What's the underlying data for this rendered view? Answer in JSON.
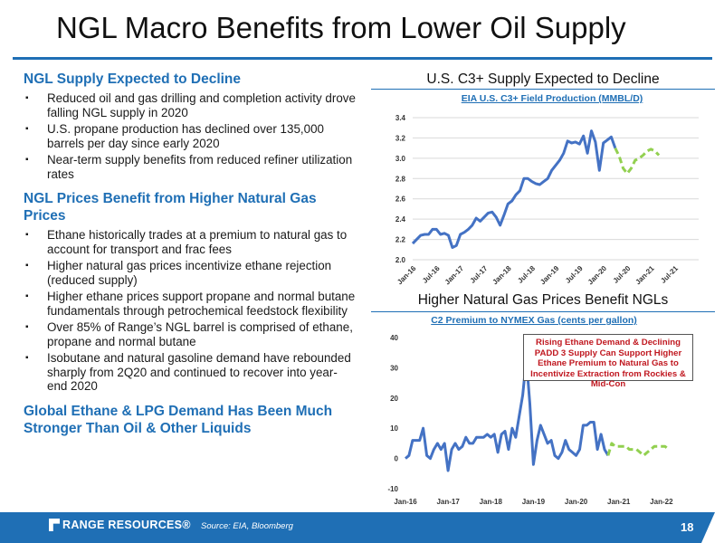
{
  "slide": {
    "title": "NGL Macro Benefits from Lower Oil Supply",
    "page_number": "18"
  },
  "sections": [
    {
      "heading": "NGL Supply Expected to Decline",
      "bullets": [
        "Reduced oil and gas drilling and completion activity drove falling NGL supply in 2020",
        "U.S. propane production has declined over 135,000 barrels per day since early 2020",
        "Near-term supply benefits from reduced refiner utilization rates"
      ]
    },
    {
      "heading": "NGL Prices Benefit from Higher Natural Gas Prices",
      "bullets": [
        "Ethane historically trades at a premium to natural gas to account for transport and frac fees",
        "Higher natural gas prices incentivize ethane rejection (reduced supply)",
        "Higher ethane prices support propane and normal butane fundamentals through petrochemical feedstock flexibility",
        "Over 85% of Range’s NGL barrel is comprised of ethane, propane and normal butane",
        "Isobutane and natural gasoline demand have rebounded sharply from 2Q20 and continued to recover into year-end 2020"
      ]
    },
    {
      "heading": "Global Ethane & LPG Demand Has Been Much Stronger Than Oil & Other Liquids",
      "bullets": []
    }
  ],
  "bullet_glyph": "▪",
  "chart1_header": "U.S. C3+ Supply Expected to Decline",
  "chart2_header": "Higher Natural Gas Prices Benefit NGLs",
  "callout": "Rising Ethane Demand & Declining PADD 3 Supply Can Support Higher Ethane Premium to Natural Gas to Incentivize Extraction from Rockies & Mid-Con",
  "footer": {
    "logo_text": "RANGE RESOURCES®",
    "source": "Source: EIA, Bloomberg"
  },
  "colors": {
    "brand_blue": "#1f6fb5",
    "series_actual": "#4472c4",
    "series_forecast": "#92d050",
    "callout_text": "#c0171f"
  },
  "chart_data": [
    {
      "type": "line",
      "title": "EIA U.S. C3+ Field Production (MMBL/D)",
      "ylim": [
        2.0,
        3.4
      ],
      "yticks": [
        "2.0",
        "2.2",
        "2.4",
        "2.6",
        "2.8",
        "3.0",
        "3.2",
        "3.4"
      ],
      "xlim": [
        0,
        72
      ],
      "xticks": [
        {
          "label": "Jan-16",
          "x": 0
        },
        {
          "label": "Jul-16",
          "x": 6
        },
        {
          "label": "Jan-17",
          "x": 12
        },
        {
          "label": "Jul-17",
          "x": 18
        },
        {
          "label": "Jan-18",
          "x": 24
        },
        {
          "label": "Jul-18",
          "x": 30
        },
        {
          "label": "Jan-19",
          "x": 36
        },
        {
          "label": "Jul-19",
          "x": 42
        },
        {
          "label": "Jan-20",
          "x": 48
        },
        {
          "label": "Jul-20",
          "x": 54
        },
        {
          "label": "Jan-21",
          "x": 60
        },
        {
          "label": "Jul-21",
          "x": 66
        }
      ],
      "grid": true,
      "series": [
        {
          "style": "solid",
          "points": [
            [
              0,
              2.16
            ],
            [
              1,
              2.2
            ],
            [
              2,
              2.24
            ],
            [
              3,
              2.25
            ],
            [
              4,
              2.25
            ],
            [
              5,
              2.3
            ],
            [
              6,
              2.3
            ],
            [
              7,
              2.25
            ],
            [
              8,
              2.26
            ],
            [
              9,
              2.24
            ],
            [
              10,
              2.12
            ],
            [
              11,
              2.14
            ],
            [
              12,
              2.25
            ],
            [
              13,
              2.27
            ],
            [
              14,
              2.3
            ],
            [
              15,
              2.34
            ],
            [
              16,
              2.41
            ],
            [
              17,
              2.38
            ],
            [
              18,
              2.42
            ],
            [
              19,
              2.46
            ],
            [
              20,
              2.47
            ],
            [
              21,
              2.42
            ],
            [
              22,
              2.34
            ],
            [
              23,
              2.44
            ],
            [
              24,
              2.55
            ],
            [
              25,
              2.58
            ],
            [
              26,
              2.64
            ],
            [
              27,
              2.68
            ],
            [
              28,
              2.8
            ],
            [
              29,
              2.8
            ],
            [
              30,
              2.77
            ],
            [
              31,
              2.75
            ],
            [
              32,
              2.74
            ],
            [
              33,
              2.77
            ],
            [
              34,
              2.8
            ],
            [
              35,
              2.88
            ],
            [
              36,
              2.93
            ],
            [
              37,
              2.98
            ],
            [
              38,
              3.05
            ],
            [
              39,
              3.17
            ],
            [
              40,
              3.15
            ],
            [
              41,
              3.16
            ],
            [
              42,
              3.14
            ],
            [
              43,
              3.22
            ],
            [
              44,
              3.05
            ],
            [
              45,
              3.27
            ],
            [
              46,
              3.16
            ],
            [
              47,
              2.88
            ],
            [
              48,
              3.15
            ],
            [
              49,
              3.18
            ],
            [
              50,
              3.21
            ],
            [
              51,
              3.1
            ]
          ]
        },
        {
          "style": "dashed",
          "points": [
            [
              51,
              3.1
            ],
            [
              52,
              3.02
            ],
            [
              53,
              2.9
            ],
            [
              54,
              2.85
            ],
            [
              55,
              2.9
            ],
            [
              56,
              2.98
            ],
            [
              57,
              3.0
            ],
            [
              58,
              3.03
            ],
            [
              59,
              3.07
            ],
            [
              60,
              3.09
            ],
            [
              61,
              3.07
            ],
            [
              62,
              3.03
            ]
          ]
        }
      ]
    },
    {
      "type": "line",
      "title": "C2 Premium to NYMEX Gas (cents per gallon)",
      "ylim": [
        -10,
        40
      ],
      "yticks": [
        "40",
        "30",
        "20",
        "10",
        "0",
        "-10"
      ],
      "xlim": [
        0,
        84
      ],
      "xticks": [
        {
          "label": "Jan-16",
          "x": 0
        },
        {
          "label": "Jan-17",
          "x": 12
        },
        {
          "label": "Jan-18",
          "x": 24
        },
        {
          "label": "Jan-19",
          "x": 36
        },
        {
          "label": "Jan-20",
          "x": 48
        },
        {
          "label": "Jan-21",
          "x": 60
        },
        {
          "label": "Jan-22",
          "x": 72
        }
      ],
      "grid": false,
      "series": [
        {
          "style": "solid",
          "points": [
            [
              0,
              0
            ],
            [
              1,
              1
            ],
            [
              2,
              6
            ],
            [
              3,
              6
            ],
            [
              4,
              6
            ],
            [
              5,
              10
            ],
            [
              6,
              1
            ],
            [
              7,
              0
            ],
            [
              8,
              3
            ],
            [
              9,
              5
            ],
            [
              10,
              3
            ],
            [
              11,
              5
            ],
            [
              12,
              -4
            ],
            [
              13,
              3
            ],
            [
              14,
              5
            ],
            [
              15,
              3
            ],
            [
              16,
              4
            ],
            [
              17,
              7
            ],
            [
              18,
              5
            ],
            [
              19,
              5
            ],
            [
              20,
              7
            ],
            [
              21,
              7
            ],
            [
              22,
              7
            ],
            [
              23,
              8
            ],
            [
              24,
              7
            ],
            [
              25,
              8
            ],
            [
              26,
              2
            ],
            [
              27,
              8
            ],
            [
              28,
              9
            ],
            [
              29,
              3
            ],
            [
              30,
              10
            ],
            [
              31,
              7
            ],
            [
              32,
              14
            ],
            [
              33,
              21
            ],
            [
              34,
              33
            ],
            [
              35,
              18
            ],
            [
              36,
              -2
            ],
            [
              37,
              6
            ],
            [
              38,
              11
            ],
            [
              39,
              8
            ],
            [
              40,
              5
            ],
            [
              41,
              6
            ],
            [
              42,
              1
            ],
            [
              43,
              0
            ],
            [
              44,
              2
            ],
            [
              45,
              6
            ],
            [
              46,
              3
            ],
            [
              47,
              2
            ],
            [
              48,
              1
            ],
            [
              49,
              3
            ],
            [
              50,
              11
            ],
            [
              51,
              11
            ],
            [
              52,
              12
            ],
            [
              53,
              12
            ],
            [
              54,
              3
            ],
            [
              55,
              8
            ],
            [
              56,
              3
            ],
            [
              57,
              1
            ]
          ]
        },
        {
          "style": "dashed",
          "points": [
            [
              57,
              1
            ],
            [
              58,
              5
            ],
            [
              59,
              4
            ],
            [
              60,
              4
            ],
            [
              61,
              4
            ],
            [
              62,
              4
            ],
            [
              63,
              3
            ],
            [
              64,
              3
            ],
            [
              65,
              3
            ],
            [
              66,
              2
            ],
            [
              67,
              1
            ],
            [
              68,
              2
            ],
            [
              69,
              3
            ],
            [
              70,
              4
            ],
            [
              71,
              4
            ],
            [
              72,
              4
            ],
            [
              73,
              4
            ],
            [
              74,
              3
            ]
          ]
        }
      ]
    }
  ]
}
